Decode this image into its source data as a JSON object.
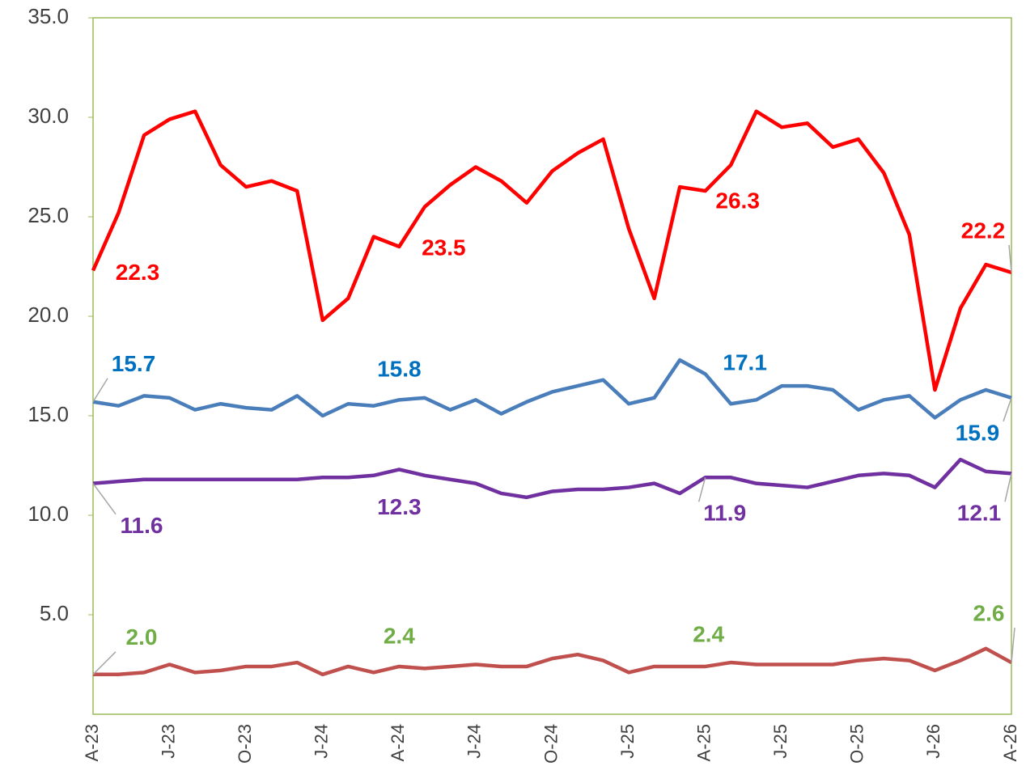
{
  "chart_data": {
    "type": "line",
    "categories": [
      "A-23",
      null,
      null,
      "J-23",
      null,
      null,
      "O-23",
      null,
      null,
      "J-24",
      null,
      null,
      "A-24",
      null,
      null,
      "J-24",
      null,
      null,
      "O-24",
      null,
      null,
      "J-25",
      null,
      null,
      "A-25",
      null,
      null,
      "J-25",
      null,
      null,
      "O-25",
      null,
      null,
      "J-26",
      null,
      null,
      "A-26"
    ],
    "ylim": [
      0,
      35
    ],
    "yticks": [
      {
        "value": 5,
        "label": "5.0"
      },
      {
        "value": 10,
        "label": "10.0"
      },
      {
        "value": 15,
        "label": "15.0"
      },
      {
        "value": 20,
        "label": "20.0"
      },
      {
        "value": 25,
        "label": "25.0"
      },
      {
        "value": 30,
        "label": "30.0"
      },
      {
        "value": 35,
        "label": "35.0"
      }
    ],
    "series": [
      {
        "color": "#ff0000",
        "label_color": "#ff0000",
        "values": [
          22.3,
          25.2,
          29.1,
          29.9,
          30.3,
          27.6,
          26.5,
          26.8,
          26.3,
          19.8,
          20.9,
          24.0,
          23.5,
          25.5,
          26.6,
          27.5,
          26.8,
          25.7,
          27.3,
          28.2,
          28.9,
          24.4,
          20.9,
          26.5,
          26.3,
          27.6,
          30.3,
          29.5,
          29.7,
          28.5,
          28.9,
          27.2,
          24.1,
          16.3,
          20.4,
          22.6,
          22.2
        ],
        "value_labels": [
          "22.3",
          null,
          null,
          null,
          null,
          null,
          null,
          null,
          null,
          null,
          null,
          null,
          "23.5",
          null,
          null,
          null,
          null,
          null,
          null,
          null,
          null,
          null,
          null,
          null,
          "26.3",
          null,
          null,
          null,
          null,
          null,
          null,
          null,
          null,
          null,
          null,
          null,
          "22.2"
        ]
      },
      {
        "color": "#4a7ebb",
        "label_color": "#0070c0",
        "values": [
          15.7,
          15.5,
          16.0,
          15.9,
          15.3,
          15.6,
          15.4,
          15.3,
          16.0,
          15.0,
          15.6,
          15.5,
          15.8,
          15.9,
          15.3,
          15.8,
          15.1,
          15.7,
          16.2,
          16.5,
          16.8,
          15.6,
          15.9,
          17.8,
          17.1,
          15.6,
          15.8,
          16.5,
          16.5,
          16.3,
          15.3,
          15.8,
          16.0,
          14.9,
          15.8,
          16.3,
          15.9
        ],
        "value_labels": [
          "15.7",
          null,
          null,
          null,
          null,
          null,
          null,
          null,
          null,
          null,
          null,
          null,
          "15.8",
          null,
          null,
          null,
          null,
          null,
          null,
          null,
          null,
          null,
          null,
          null,
          "17.1",
          null,
          null,
          null,
          null,
          null,
          null,
          null,
          null,
          null,
          null,
          null,
          "15.9"
        ]
      },
      {
        "color": "#7030a0",
        "label_color": "#7030a0",
        "values": [
          11.6,
          11.7,
          11.8,
          11.8,
          11.8,
          11.8,
          11.8,
          11.8,
          11.8,
          11.9,
          11.9,
          12.0,
          12.3,
          12.0,
          11.8,
          11.6,
          11.1,
          10.9,
          11.2,
          11.3,
          11.3,
          11.4,
          11.6,
          11.1,
          11.9,
          11.9,
          11.6,
          11.5,
          11.4,
          11.7,
          12.0,
          12.1,
          12.0,
          11.4,
          12.8,
          12.2,
          12.1
        ],
        "value_labels": [
          "11.6",
          null,
          null,
          null,
          null,
          null,
          null,
          null,
          null,
          null,
          null,
          null,
          "12.3",
          null,
          null,
          null,
          null,
          null,
          null,
          null,
          null,
          null,
          null,
          null,
          "11.9",
          null,
          null,
          null,
          null,
          null,
          null,
          null,
          null,
          null,
          null,
          null,
          "12.1"
        ]
      },
      {
        "color": "#c0504d",
        "label_color": "#70ad47",
        "values": [
          2.0,
          2.0,
          2.1,
          2.5,
          2.1,
          2.2,
          2.4,
          2.4,
          2.6,
          2.0,
          2.4,
          2.1,
          2.4,
          2.3,
          2.4,
          2.5,
          2.4,
          2.4,
          2.8,
          3.0,
          2.7,
          2.1,
          2.4,
          2.4,
          2.4,
          2.6,
          2.5,
          2.5,
          2.5,
          2.5,
          2.7,
          2.8,
          2.7,
          2.2,
          2.7,
          3.3,
          2.6
        ],
        "value_labels": [
          "2.0",
          null,
          null,
          null,
          null,
          null,
          null,
          null,
          null,
          null,
          null,
          null,
          "2.4",
          null,
          null,
          null,
          null,
          null,
          null,
          null,
          null,
          null,
          null,
          null,
          "2.4",
          null,
          null,
          null,
          null,
          null,
          null,
          null,
          null,
          null,
          null,
          null,
          "2.6"
        ]
      }
    ]
  }
}
